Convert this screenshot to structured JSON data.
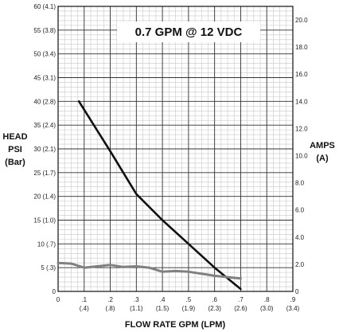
{
  "chart_data": {
    "type": "line",
    "title": "0.7 GPM @ 12 VDC",
    "xlabel": "FLOW RATE GPM (LPM)",
    "ylabel_left": [
      "HEAD",
      "PSI",
      "(Bar)"
    ],
    "ylabel_right": [
      "AMPS",
      "(A)"
    ],
    "xlim": [
      0,
      0.9
    ],
    "ylim_left": [
      0,
      60
    ],
    "ylim_right": [
      0,
      21
    ],
    "grid": true,
    "x_ticks": [
      {
        "value": 0,
        "label": "0",
        "sublabel": ""
      },
      {
        "value": 0.1,
        "label": ".1",
        "sublabel": "(.4)"
      },
      {
        "value": 0.2,
        "label": ".2",
        "sublabel": "(.8)"
      },
      {
        "value": 0.3,
        "label": ".3",
        "sublabel": "(1.1)"
      },
      {
        "value": 0.4,
        "label": ".4",
        "sublabel": "(1.5)"
      },
      {
        "value": 0.5,
        "label": ".5",
        "sublabel": "(1.9)"
      },
      {
        "value": 0.6,
        "label": ".6",
        "sublabel": "(2.3)"
      },
      {
        "value": 0.7,
        "label": ".7",
        "sublabel": "(2.6)"
      },
      {
        "value": 0.8,
        "label": ".8",
        "sublabel": "(3.0)"
      },
      {
        "value": 0.9,
        "label": ".9",
        "sublabel": "(3.4)"
      }
    ],
    "y_ticks_left": [
      {
        "value": 0,
        "label": "0"
      },
      {
        "value": 5,
        "label": "5 (.3)"
      },
      {
        "value": 10,
        "label": "10 (.7)"
      },
      {
        "value": 15,
        "label": "15 (1.0)"
      },
      {
        "value": 20,
        "label": "20 (1.4)"
      },
      {
        "value": 25,
        "label": "25 (1.7)"
      },
      {
        "value": 30,
        "label": "30 (2.1)"
      },
      {
        "value": 35,
        "label": "35 (2.4)"
      },
      {
        "value": 40,
        "label": "40 (2.8)"
      },
      {
        "value": 45,
        "label": "45 (3.1)"
      },
      {
        "value": 50,
        "label": "50 (3.4)"
      },
      {
        "value": 55,
        "label": "55 (3.8)"
      },
      {
        "value": 60,
        "label": "60 (4.1)"
      }
    ],
    "y_ticks_right": [
      {
        "value": 0,
        "label": "0"
      },
      {
        "value": 2,
        "label": "2.0"
      },
      {
        "value": 4,
        "label": "4.0"
      },
      {
        "value": 6,
        "label": "6.0"
      },
      {
        "value": 8,
        "label": "8.0"
      },
      {
        "value": 10,
        "label": "10.0"
      },
      {
        "value": 12,
        "label": "12.0"
      },
      {
        "value": 14,
        "label": "14.0"
      },
      {
        "value": 16,
        "label": "16.0"
      },
      {
        "value": 18,
        "label": "18.0"
      },
      {
        "value": 20,
        "label": "20.0"
      }
    ],
    "series": [
      {
        "axis": "left",
        "color": "#111111",
        "x": [
          0.08,
          0.2,
          0.3,
          0.4,
          0.5,
          0.6,
          0.7
        ],
        "y": [
          40,
          29.5,
          20.5,
          15,
          10,
          5,
          0.5
        ]
      },
      {
        "axis": "right",
        "color": "#808080",
        "x": [
          0,
          0.05,
          0.1,
          0.15,
          0.2,
          0.25,
          0.3,
          0.35,
          0.4,
          0.45,
          0.5,
          0.55,
          0.6,
          0.65,
          0.7
        ],
        "y": [
          2.1,
          2.05,
          1.75,
          1.85,
          1.95,
          1.8,
          1.85,
          1.75,
          1.45,
          1.5,
          1.45,
          1.3,
          1.15,
          1.05,
          0.95
        ]
      }
    ]
  }
}
